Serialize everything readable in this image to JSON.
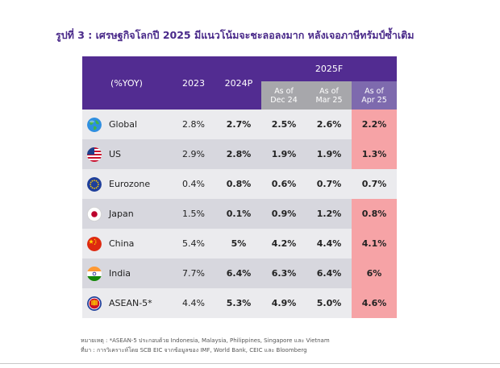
{
  "title": "รูปที่ 3 : เศรษฐกิจโลกปี 2025 มีแนวโน้มจะชะลอลงมาก หลังเจอภาษีทรัมป์ซ้ำเติม",
  "table": {
    "header_label": "(%YOY)",
    "col_2023": "2023",
    "col_2024": "2024P",
    "group_2025": "2025F",
    "sub": [
      {
        "line1": "As of",
        "line2": "Dec 24"
      },
      {
        "line1": "As of",
        "line2": "Mar 25"
      },
      {
        "line1": "As of",
        "line2": "Apr 25"
      }
    ],
    "rows": [
      {
        "name": "Global",
        "v2023": "2.8%",
        "v2024": "2.7%",
        "dec24": "2.5%",
        "mar25": "2.6%",
        "apr25": "2.2%"
      },
      {
        "name": "US",
        "v2023": "2.9%",
        "v2024": "2.8%",
        "dec24": "1.9%",
        "mar25": "1.9%",
        "apr25": "1.3%"
      },
      {
        "name": "Eurozone",
        "v2023": "0.4%",
        "v2024": "0.8%",
        "dec24": "0.6%",
        "mar25": "0.7%",
        "apr25": "0.7%"
      },
      {
        "name": "Japan",
        "v2023": "1.5%",
        "v2024": "0.1%",
        "dec24": "0.9%",
        "mar25": "1.2%",
        "apr25": "0.8%"
      },
      {
        "name": "China",
        "v2023": "5.4%",
        "v2024": "5%",
        "dec24": "4.2%",
        "mar25": "4.4%",
        "apr25": "4.1%"
      },
      {
        "name": "India",
        "v2023": "7.7%",
        "v2024": "6.4%",
        "dec24": "6.3%",
        "mar25": "6.4%",
        "apr25": "6%"
      },
      {
        "name": "ASEAN-5*",
        "v2023": "4.4%",
        "v2024": "5.3%",
        "dec24": "4.9%",
        "mar25": "5.0%",
        "apr25": "4.6%"
      }
    ]
  },
  "colors": {
    "header": "#522c91",
    "sub_gray": "#a7a7ab",
    "sub_purple": "#7e6aae",
    "row_light": "#ebebee",
    "row_dark": "#d7d7de",
    "highlight": "#f6a3a6"
  },
  "icons": [
    "globe-icon",
    "us-flag-icon",
    "eu-flag-icon",
    "japan-flag-icon",
    "china-flag-icon",
    "india-flag-icon",
    "asean-icon"
  ],
  "footer": {
    "note": "หมายเหตุ : *ASEAN-5 ประกอบด้วย Indonesia, Malaysia, Philippines, Singapore และ Vietnam",
    "source": "ที่มา : การวิเคราะห์โดย SCB EIC จากข้อมูลของ IMF, World Bank, CEIC และ Bloomberg"
  }
}
